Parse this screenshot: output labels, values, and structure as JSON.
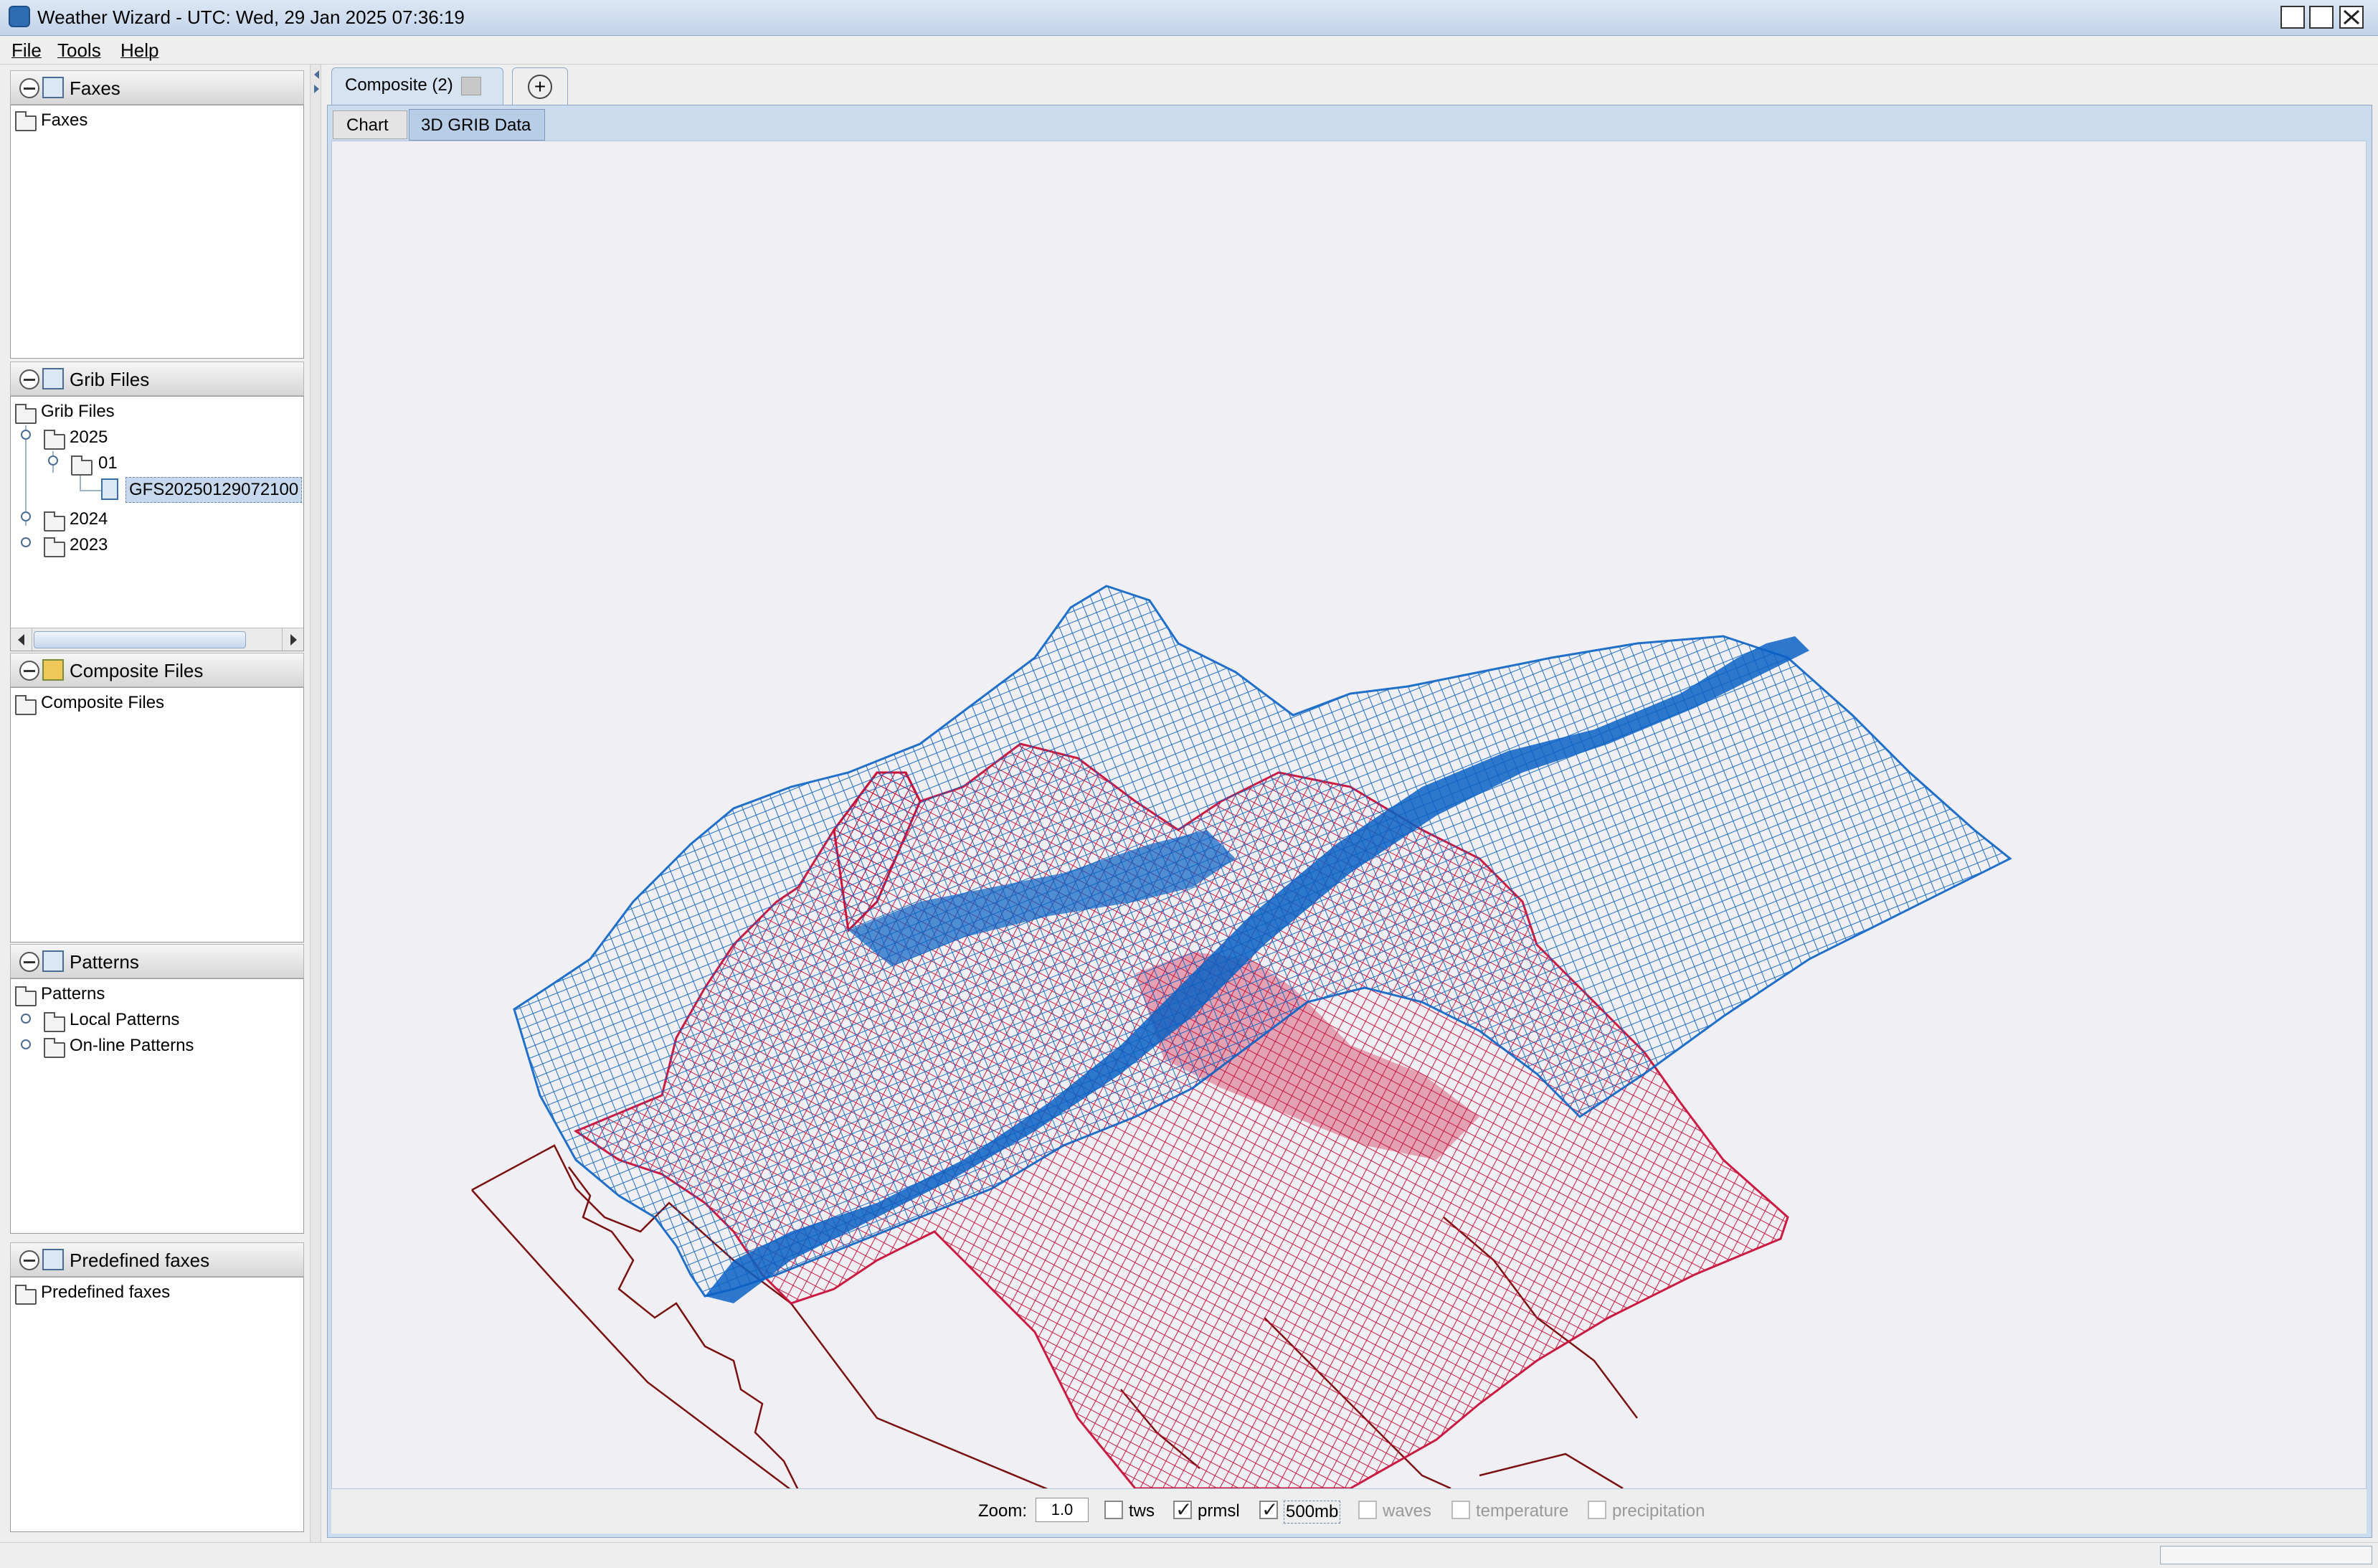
{
  "window": {
    "title": "Weather Wizard - UTC: Wed, 29 Jan 2025 07:36:19"
  },
  "menu": [
    "File",
    "Tools",
    "Help"
  ],
  "panels": {
    "faxes": {
      "title": "Faxes",
      "root": "Faxes"
    },
    "grib": {
      "title": "Grib Files",
      "root": "Grib Files",
      "year_2025": "2025",
      "month_01": "01",
      "file": "GFS20250129072100",
      "year_2024": "2024",
      "year_2023": "2023"
    },
    "composite": {
      "title": "Composite Files",
      "root": "Composite Files"
    },
    "patterns": {
      "title": "Patterns",
      "root": "Patterns",
      "local": "Local Patterns",
      "online": "On-line Patterns"
    },
    "predefined": {
      "title": "Predefined faxes",
      "root": "Predefined faxes"
    }
  },
  "tabs": {
    "composite": "Composite (2)",
    "add": "+"
  },
  "subtabs": {
    "chart": "Chart",
    "grib3d": "3D GRIB Data"
  },
  "controls": {
    "zoom_label": "Zoom:",
    "zoom_value": "1.0",
    "options": [
      {
        "label": "tws",
        "checked": false,
        "enabled": true
      },
      {
        "label": "prmsl",
        "checked": true,
        "enabled": true
      },
      {
        "label": "500mb",
        "checked": true,
        "enabled": true
      },
      {
        "label": "waves",
        "checked": false,
        "enabled": false
      },
      {
        "label": "temperature",
        "checked": false,
        "enabled": false
      },
      {
        "label": "precipitation",
        "checked": false,
        "enabled": false
      }
    ]
  },
  "colors": {
    "prmsl_mesh": "#c8103a",
    "500mb_mesh": "#0a62c4",
    "coastline": "#7a1010"
  }
}
